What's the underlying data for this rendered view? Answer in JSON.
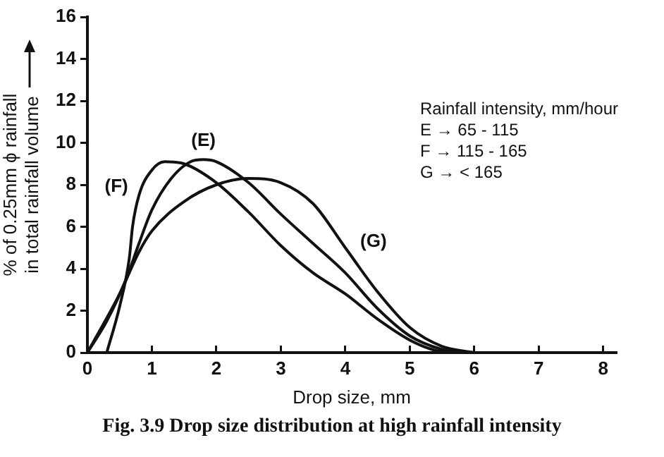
{
  "chart_data": {
    "type": "line",
    "title": "Fig. 3.9 Drop size distribution at high rainfall intensity",
    "xlabel": "Drop size, mm",
    "ylabel": "% of 0.25mm ϕ rainfall in total rainfall volume",
    "xlim": [
      0,
      8.2
    ],
    "xticks": [
      0,
      1,
      2,
      3,
      4,
      5,
      6,
      7,
      8
    ],
    "ylim": [
      0,
      16
    ],
    "yticks": [
      0,
      2,
      4,
      6,
      8,
      10,
      12,
      14,
      16
    ],
    "grid": false,
    "legend": false,
    "marker": "none",
    "line_style": "solid",
    "series": [
      {
        "name": "(F)",
        "color": "#111111",
        "x": [
          0.3,
          0.5,
          0.65,
          0.7,
          0.8,
          1.0,
          1.2,
          1.5,
          2.0,
          2.5,
          3.0,
          3.5,
          4.0,
          4.5,
          5.0,
          5.4,
          5.6
        ],
        "values": [
          0,
          2.2,
          4.5,
          6,
          7.5,
          8.7,
          9.1,
          9.0,
          8.1,
          6.7,
          5.1,
          3.8,
          2.8,
          1.6,
          0.6,
          0.1,
          0
        ]
      },
      {
        "name": "(E)",
        "color": "#111111",
        "x": [
          0,
          0.3,
          0.6,
          0.8,
          1.0,
          1.3,
          1.6,
          1.8,
          2.0,
          2.5,
          3.0,
          3.5,
          4.0,
          4.5,
          5.0,
          5.5,
          5.8
        ],
        "values": [
          0,
          1.5,
          3.5,
          5.2,
          6.8,
          8.3,
          9.1,
          9.2,
          9.1,
          8.1,
          6.6,
          5.2,
          3.8,
          2.1,
          0.8,
          0.15,
          0
        ]
      },
      {
        "name": "(G)",
        "color": "#111111",
        "x": [
          0,
          0.5,
          0.8,
          1.0,
          1.5,
          2.0,
          2.5,
          3.0,
          3.5,
          4.0,
          4.5,
          5.0,
          5.5,
          6.0
        ],
        "values": [
          0,
          2.8,
          4.8,
          5.8,
          7.2,
          8.0,
          8.3,
          8.1,
          7.1,
          5.0,
          2.9,
          1.2,
          0.3,
          0
        ]
      }
    ],
    "annotations": [
      "Rainfall intensity, mm/hour",
      "E → 65 - 115",
      "F → 115 - 165",
      "G → < 165"
    ]
  }
}
